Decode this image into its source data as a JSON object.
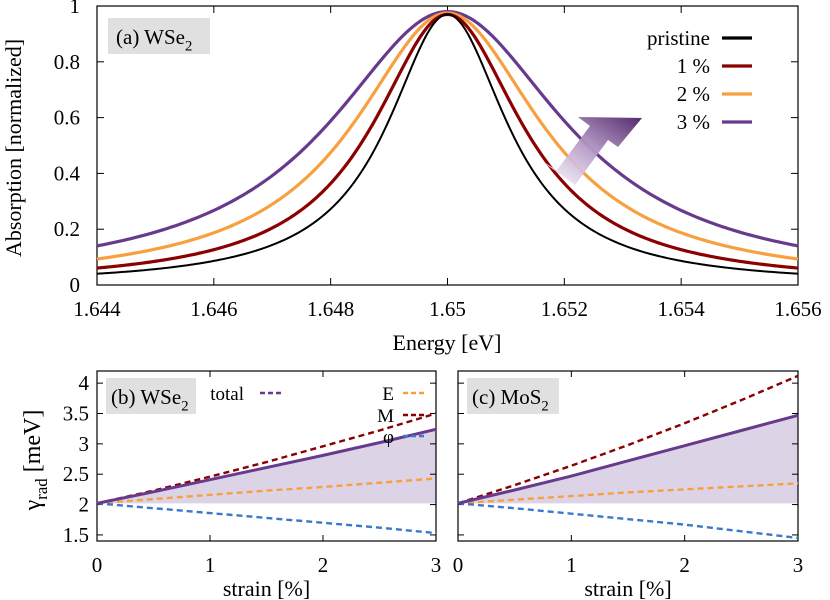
{
  "chart_data": [
    {
      "id": "a",
      "type": "line",
      "panel_label": "(a) WSe",
      "panel_label_sub": "2",
      "xlabel": "Energy [eV]",
      "ylabel": "Absorption [normalized]",
      "xlim": [
        1.644,
        1.656
      ],
      "ylim": [
        0,
        1
      ],
      "xticks": [
        1.644,
        1.646,
        1.648,
        1.65,
        1.652,
        1.654,
        1.656
      ],
      "xtick_labels": [
        "1.644",
        "1.646",
        "1.648",
        "1.65",
        "1.652",
        "1.654",
        "1.656"
      ],
      "yticks": [
        0,
        0.2,
        0.4,
        0.6,
        0.8,
        1
      ],
      "ytick_labels": [
        "0",
        "0.2",
        "0.4",
        "0.6",
        "0.8",
        "1"
      ],
      "legend_position": "top-right",
      "series": [
        {
          "name": "pristine",
          "color": "#000000",
          "center": 1.65,
          "hwhm": 0.00125,
          "peak": 0.97
        },
        {
          "name": "1 %",
          "color": "#8b0000",
          "center": 1.65,
          "hwhm": 0.00155,
          "peak": 0.97
        },
        {
          "name": "2 %",
          "color": "#f7a040",
          "center": 1.65,
          "hwhm": 0.00195,
          "peak": 0.975
        },
        {
          "name": "3 %",
          "color": "#673a8e",
          "center": 1.65,
          "hwhm": 0.00245,
          "peak": 0.98
        }
      ],
      "annotation": "arrow indicating increasing strain (broadening)"
    },
    {
      "id": "b",
      "type": "line",
      "panel_label": "(b) WSe",
      "panel_label_sub": "2",
      "xlabel": "strain [%]",
      "ylabel": "γ",
      "ylabel_sub": "rad",
      "ylabel_unit": " [meV]",
      "xlim": [
        0,
        3
      ],
      "ylim": [
        1.4,
        4.2
      ],
      "xticks": [
        0,
        1,
        2,
        3
      ],
      "xtick_labels": [
        "0",
        "1",
        "2",
        "3"
      ],
      "yticks": [
        1.5,
        2,
        2.5,
        3,
        3.5,
        4
      ],
      "ytick_labels": [
        "1.5",
        "2",
        "2.5",
        "3",
        "3.5",
        "4"
      ],
      "x": [
        0,
        0.5,
        1,
        1.5,
        2,
        2.5,
        3
      ],
      "shaded_band": {
        "lower": 2.02,
        "upper_series": "total",
        "color": "#ddd3e6"
      },
      "series": [
        {
          "name": "total",
          "color": "#673a8e",
          "dash": false,
          "values": [
            2.02,
            2.21,
            2.41,
            2.61,
            2.81,
            3.02,
            3.24
          ]
        },
        {
          "name": "E",
          "color": "#f7a040",
          "dash": true,
          "values": [
            2.02,
            2.09,
            2.16,
            2.23,
            2.29,
            2.36,
            2.43
          ]
        },
        {
          "name": "M",
          "color": "#8b0000",
          "dash": true,
          "values": [
            2.02,
            2.23,
            2.46,
            2.7,
            2.96,
            3.22,
            3.5
          ]
        },
        {
          "name": "φ",
          "color": "#3a78c8",
          "dash": true,
          "values": [
            2.02,
            1.94,
            1.86,
            1.78,
            1.7,
            1.62,
            1.53
          ]
        }
      ],
      "legend_position": "top"
    },
    {
      "id": "c",
      "type": "line",
      "panel_label": "(c) MoS",
      "panel_label_sub": "2",
      "xlabel": "strain [%]",
      "xlim": [
        0,
        3
      ],
      "ylim": [
        1.4,
        4.2
      ],
      "xticks": [
        0,
        1,
        2,
        3
      ],
      "xtick_labels": [
        "0",
        "1",
        "2",
        "3"
      ],
      "x": [
        0,
        0.5,
        1,
        1.5,
        2,
        2.5,
        3
      ],
      "shaded_band": {
        "lower": 2.02,
        "upper_series": "total",
        "color": "#ddd3e6"
      },
      "series": [
        {
          "name": "total",
          "color": "#673a8e",
          "dash": false,
          "values": [
            2.02,
            2.24,
            2.47,
            2.72,
            2.97,
            3.22,
            3.47
          ]
        },
        {
          "name": "E",
          "color": "#f7a040",
          "dash": true,
          "values": [
            2.02,
            2.08,
            2.14,
            2.2,
            2.25,
            2.3,
            2.35
          ]
        },
        {
          "name": "M",
          "color": "#8b0000",
          "dash": true,
          "values": [
            2.02,
            2.32,
            2.64,
            2.98,
            3.34,
            3.72,
            4.12
          ]
        },
        {
          "name": "φ",
          "color": "#3a78c8",
          "dash": true,
          "values": [
            2.02,
            1.94,
            1.85,
            1.76,
            1.67,
            1.56,
            1.45
          ]
        }
      ]
    }
  ]
}
